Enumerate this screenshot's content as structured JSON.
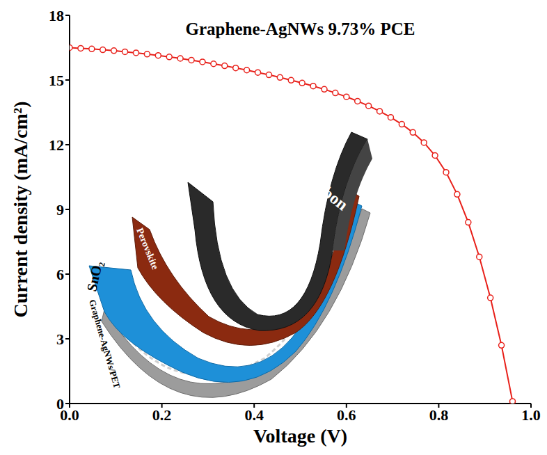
{
  "chart_data": {
    "type": "line",
    "title": "Graphene-AgNWs 9.73% PCE",
    "x_label": "Voltage (V)",
    "y_label": "Current density (mA/cm²)",
    "annotations": [
      "Carbon",
      "Perovskite",
      "SnO₂",
      "Graphene-AgNWs/PET"
    ],
    "x": [
      0,
      0.024,
      0.048,
      0.072,
      0.096,
      0.12,
      0.144,
      0.168,
      0.192,
      0.216,
      0.24,
      0.264,
      0.288,
      0.312,
      0.336,
      0.36,
      0.384,
      0.408,
      0.432,
      0.456,
      0.48,
      0.504,
      0.528,
      0.552,
      0.576,
      0.6,
      0.624,
      0.648,
      0.672,
      0.696,
      0.72,
      0.744,
      0.768,
      0.792,
      0.816,
      0.84,
      0.864,
      0.888,
      0.912,
      0.936,
      0.96
    ],
    "series": [
      {
        "name": "Graphene-AgNWs",
        "color": "#e8201a",
        "marker": "circle",
        "line_style": "solid",
        "values": [
          16.5,
          16.47,
          16.44,
          16.4,
          16.36,
          16.31,
          16.26,
          16.2,
          16.14,
          16.07,
          16.0,
          15.92,
          15.84,
          15.75,
          15.66,
          15.56,
          15.46,
          15.35,
          15.24,
          15.12,
          14.99,
          14.86,
          14.72,
          14.57,
          14.4,
          14.22,
          14.02,
          13.8,
          13.55,
          13.27,
          12.95,
          12.57,
          12.1,
          11.5,
          10.72,
          9.7,
          8.4,
          6.8,
          4.9,
          2.7,
          0.1
        ]
      }
    ],
    "xlim": [
      0,
      1
    ],
    "xticks": [
      {
        "value": 0,
        "label": "0.0"
      },
      0.2,
      0.4,
      0.6,
      0.8,
      {
        "value": 1,
        "label": "1.0"
      }
    ],
    "ylim": [
      0,
      18
    ],
    "yticks": [
      0,
      3,
      6,
      9,
      12,
      15,
      18
    ],
    "grid": false
  }
}
